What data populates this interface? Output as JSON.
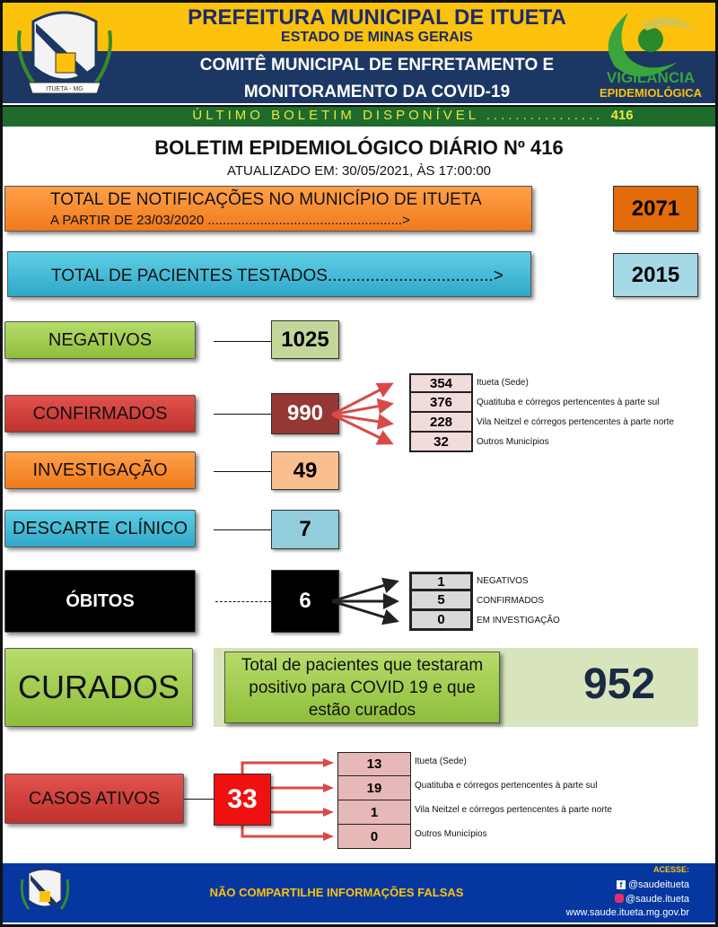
{
  "header": {
    "title": "PREFEITURA MUNICIPAL DE ITUETA",
    "state": "ESTADO DE MINAS GERAIS",
    "committee_line1": "COMITÊ MUNICIPAL DE ENFRETAMENTO E",
    "committee_line2": "MONITORAMENTO DA COVID-19",
    "last_bulletin_label": "ÚLTIMO BOLETIM DISPONÍVEL ................",
    "last_bulletin_number": "416",
    "logo_right_line1": "VIGILÂNCIA",
    "logo_right_line2": "EPIDEMIOLÓGICA",
    "crest_text": "ITUETA - MG"
  },
  "bulletin": {
    "title": "BOLETIM EPIDEMIOLÓGICO DIÁRIO Nº 416",
    "updated": "ATUALIZADO EM: 30/05/2021, ÀS  17:00:00"
  },
  "notifications": {
    "line1": "TOTAL DE NOTIFICAÇÕES NO MUNICÍPIO DE ITUETA",
    "line2": "A PARTIR DE 23/03/2020 ....................................................>",
    "value": "2071"
  },
  "tested": {
    "label": "TOTAL DE PACIENTES TESTADOS...................................>",
    "value": "2015"
  },
  "negatives": {
    "label": "NEGATIVOS",
    "value": "1025"
  },
  "confirmed": {
    "label": "CONFIRMADOS",
    "value": "990",
    "breakdown": [
      {
        "value": "354",
        "label": "Itueta (Sede)"
      },
      {
        "value": "376",
        "label": "Quatituba e córregos pertencentes à parte sul"
      },
      {
        "value": "228",
        "label": "Vila Neitzel e córregos pertencentes à parte norte"
      },
      {
        "value": "32",
        "label": "Outros Municípios"
      }
    ]
  },
  "investigation": {
    "label": "INVESTIGAÇÃO",
    "value": "49"
  },
  "clinical_discard": {
    "label": "DESCARTE CLÍNICO",
    "value": "7"
  },
  "deaths": {
    "label": "ÓBITOS",
    "value": "6",
    "breakdown": [
      {
        "value": "1",
        "label": "NEGATIVOS"
      },
      {
        "value": "5",
        "label": "CONFIRMADOS"
      },
      {
        "value": "0",
        "label": "EM INVESTIGAÇÃO"
      }
    ]
  },
  "recovered": {
    "label": "CURADOS",
    "description": "Total de pacientes que testaram positivo para COVID 19 e que estão curados",
    "value": "952"
  },
  "active": {
    "label": "CASOS ATIVOS",
    "value": "33",
    "breakdown": [
      {
        "value": "13",
        "label": "Itueta (Sede)"
      },
      {
        "value": "19",
        "label": "Quatituba e córregos pertencentes à parte sul"
      },
      {
        "value": "1",
        "label": "Vila Neitzel e córregos pertencentes à parte norte"
      },
      {
        "value": "0",
        "label": "Outros Municípios"
      }
    ]
  },
  "footer": {
    "message": "NÃO COMPARTILHE INFORMAÇÕES FALSAS",
    "access": "ACESSE:",
    "facebook": "@saudeitueta",
    "instagram": "@saude.itueta",
    "website": "www.saude.itueta.mg.gov.br"
  }
}
